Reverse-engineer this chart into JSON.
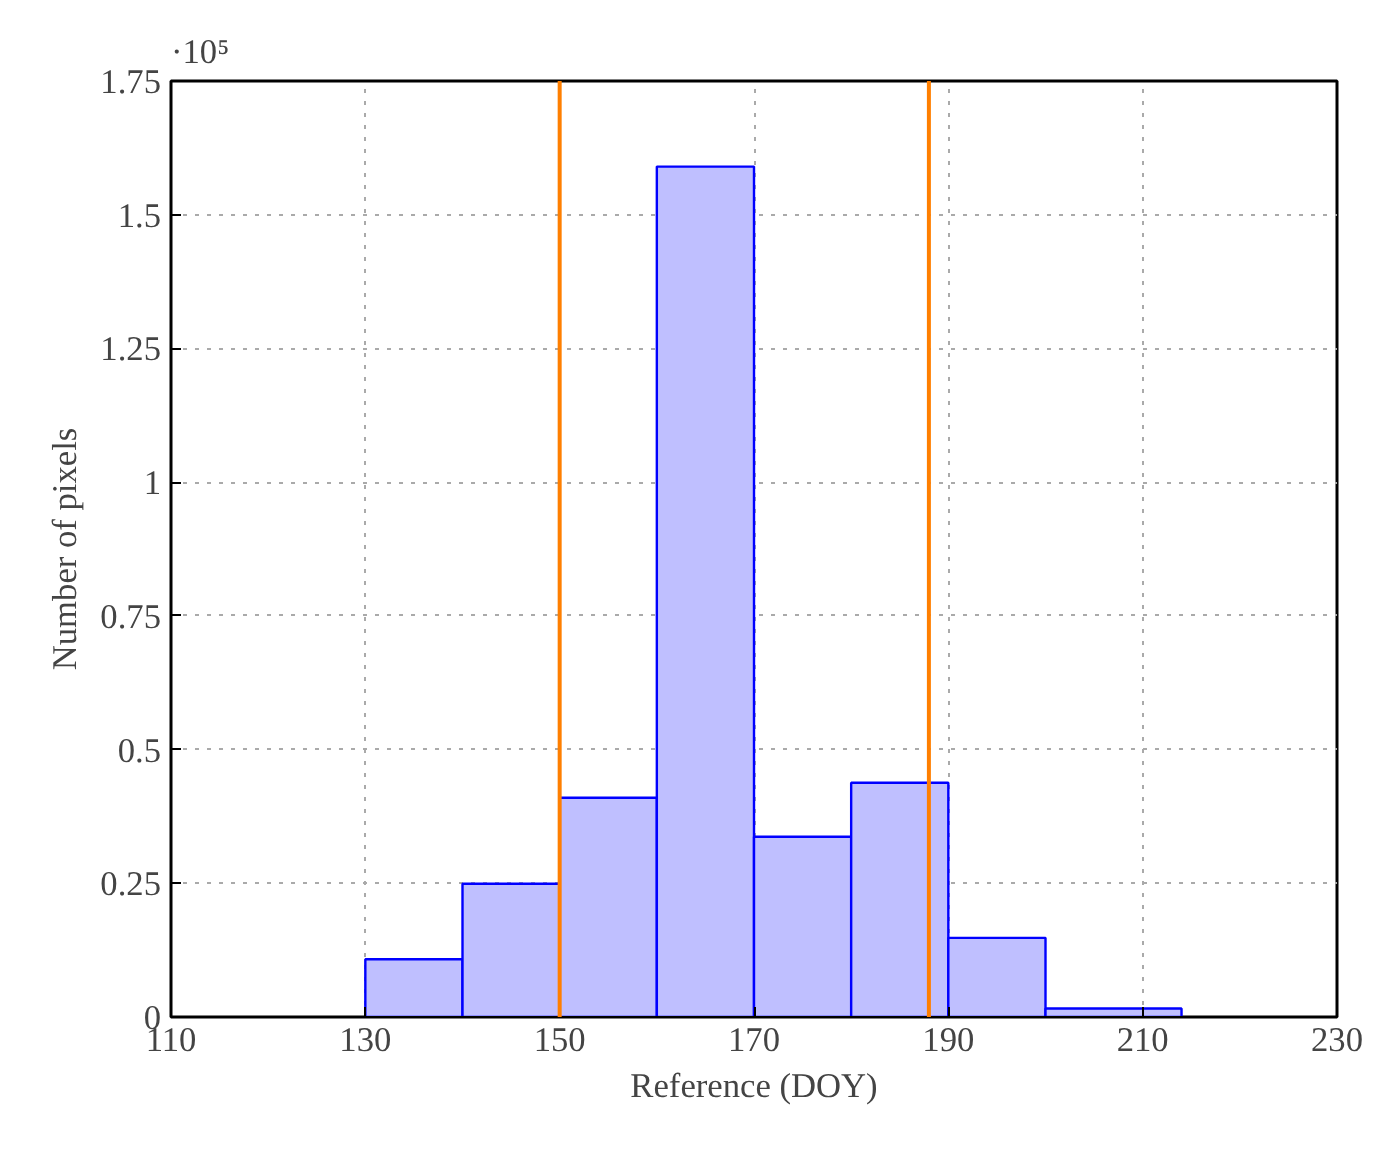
{
  "chart_data": {
    "type": "histogram",
    "xlabel": "Reference (DOY)",
    "ylabel": "Number of pixels",
    "annotations": [
      "·10⁵"
    ],
    "bins": [
      130,
      140,
      150,
      160,
      170,
      180,
      190,
      200,
      214
    ],
    "values": [
      0.108,
      0.249,
      0.41,
      1.59,
      0.337,
      0.438,
      0.148,
      0.016
    ],
    "color": "#bfbfff",
    "xlim": [
      110,
      230
    ],
    "xticks": [
      110,
      130,
      150,
      170,
      190,
      210,
      230
    ],
    "ylim": [
      0,
      1.75
    ],
    "yticks": [
      0,
      0.25,
      0.5,
      0.75,
      1,
      1.25,
      1.5,
      1.75
    ],
    "grid": true,
    "ref_lines": [
      {
        "axis": "x",
        "value": 150,
        "color": "#ff7f00"
      },
      {
        "axis": "x",
        "value": 188,
        "color": "#ff7f00"
      }
    ]
  }
}
